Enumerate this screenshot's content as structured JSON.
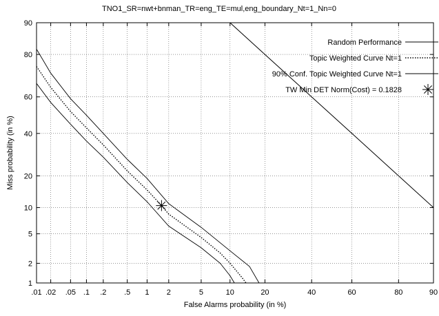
{
  "chart_data": {
    "type": "line",
    "title": "TNO1_SR=nwt+bnman_TR=eng_TE=mul,eng_boundary_Nt=1_Nn=0",
    "xlabel": "False Alarms probability (in %)",
    "ylabel": "Miss probability (in %)",
    "x_scale": "normal-deviate",
    "y_scale": "normal-deviate",
    "xlim": [
      0.01,
      90
    ],
    "ylim": [
      1,
      90
    ],
    "grid": true,
    "legend_position": "top-right",
    "x_ticks": [
      0.01,
      0.02,
      0.05,
      0.1,
      0.2,
      0.5,
      1,
      2,
      5,
      10,
      20,
      40,
      60,
      80,
      90
    ],
    "x_tick_labels": [
      ".01",
      ".02",
      ".05",
      ".1",
      ".2",
      ".5",
      "1",
      "2",
      "5",
      "10",
      "20",
      "40",
      "60",
      "80",
      "90"
    ],
    "y_ticks": [
      1,
      2,
      5,
      10,
      20,
      40,
      60,
      80,
      90
    ],
    "y_tick_labels": [
      "1",
      "2",
      "5",
      "10",
      "20",
      "40",
      "60",
      "80",
      "90"
    ],
    "series": [
      {
        "name": "Random Performance",
        "style": "solid",
        "points": [
          [
            10,
            90
          ],
          [
            20,
            80
          ],
          [
            40,
            60
          ],
          [
            60,
            40
          ],
          [
            80,
            20
          ],
          [
            90,
            10
          ]
        ]
      },
      {
        "name": "Topic Weighted Curve Nt=1",
        "style": "dotted",
        "points": [
          [
            0.01,
            75
          ],
          [
            0.02,
            65
          ],
          [
            0.05,
            52
          ],
          [
            0.1,
            43
          ],
          [
            0.2,
            34
          ],
          [
            0.5,
            22
          ],
          [
            1,
            15
          ],
          [
            1.6,
            10.5
          ],
          [
            2,
            8.5
          ],
          [
            5,
            4.5
          ],
          [
            8,
            2.8
          ],
          [
            10,
            2
          ],
          [
            13,
            1.2
          ],
          [
            14,
            1
          ]
        ]
      },
      {
        "name": "90% Conf. Topic Weighted Curve Nt=1",
        "style": "solid-thin",
        "points": [
          [
            0.01,
            82
          ],
          [
            0.02,
            72
          ],
          [
            0.05,
            59
          ],
          [
            0.1,
            50
          ],
          [
            0.2,
            40
          ],
          [
            0.5,
            27
          ],
          [
            1,
            19
          ],
          [
            2,
            11
          ],
          [
            5,
            6
          ],
          [
            10,
            3
          ],
          [
            15,
            1.8
          ],
          [
            18,
            1
          ]
        ]
      },
      {
        "name": "",
        "style": "solid-thin",
        "points": [
          [
            0.01,
            67
          ],
          [
            0.02,
            57
          ],
          [
            0.05,
            45
          ],
          [
            0.1,
            36
          ],
          [
            0.2,
            28
          ],
          [
            0.5,
            17.5
          ],
          [
            1,
            11.5
          ],
          [
            2,
            6.2
          ],
          [
            5,
            3.3
          ],
          [
            8,
            2
          ],
          [
            10,
            1.3
          ],
          [
            11,
            1
          ]
        ]
      }
    ],
    "min_point": {
      "name": "TW Min DET Norm(Cost) = 0.1828",
      "x": 1.6,
      "y": 10.5
    }
  }
}
